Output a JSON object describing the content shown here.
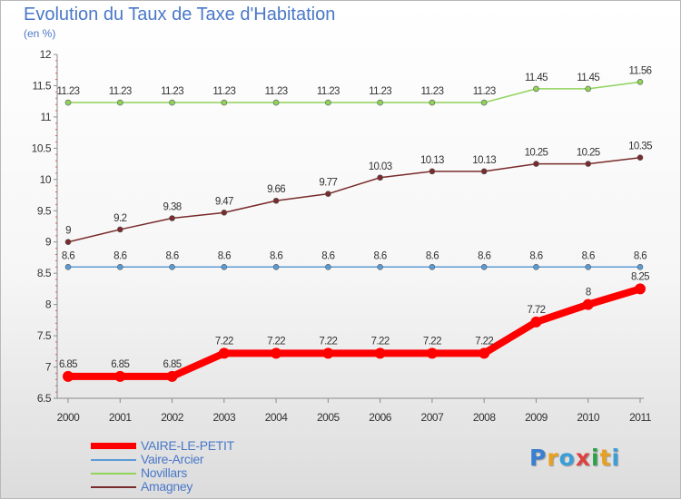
{
  "title": "Evolution du Taux de Taxe d'Habitation",
  "subtitle": "(en %)",
  "brand": {
    "text": "Proxiti",
    "letters": [
      {
        "ch": "P",
        "color": "#3a7fd0"
      },
      {
        "ch": "r",
        "color": "#e8a020"
      },
      {
        "ch": "o",
        "color": "#3a9ed8"
      },
      {
        "ch": "x",
        "color": "#e04040"
      },
      {
        "ch": "i",
        "color": "#2fa04a"
      },
      {
        "ch": "t",
        "color": "#e8a020"
      },
      {
        "ch": "i",
        "color": "#3a9ed8"
      }
    ]
  },
  "chart_data": {
    "type": "line",
    "title": "Evolution du Taux de Taxe d'Habitation",
    "subtitle": "(en %)",
    "xlabel": "",
    "ylabel": "",
    "x": [
      "2000",
      "2001",
      "2002",
      "2003",
      "2004",
      "2005",
      "2006",
      "2007",
      "2008",
      "2009",
      "2010",
      "2011"
    ],
    "ylim": [
      6.5,
      12
    ],
    "yticks": [
      6.5,
      7,
      7.5,
      8,
      8.5,
      9,
      9.5,
      10,
      10.5,
      11,
      11.5,
      12
    ],
    "ytick_labels": [
      "6.5",
      "7",
      "7.5",
      "8",
      "8.5",
      "9",
      "9.5",
      "10",
      "10.5",
      "11",
      "11.5",
      "12"
    ],
    "grid": false,
    "legend_position": "bottom-left",
    "series": [
      {
        "name": "VAIRE-LE-PETIT",
        "color": "#ff0000",
        "values": [
          6.85,
          6.85,
          6.85,
          7.22,
          7.22,
          7.22,
          7.22,
          7.22,
          7.22,
          7.72,
          8,
          8.25
        ],
        "labels": [
          "6.85",
          "6.85",
          "6.85",
          "7.22",
          "7.22",
          "7.22",
          "7.22",
          "7.22",
          "7.22",
          "7.72",
          "8",
          "8.25"
        ]
      },
      {
        "name": "Vaire-Arcier",
        "color": "#5b9bd5",
        "values": [
          8.6,
          8.6,
          8.6,
          8.6,
          8.6,
          8.6,
          8.6,
          8.6,
          8.6,
          8.6,
          8.6,
          8.6
        ],
        "labels": [
          "8.6",
          "8.6",
          "8.6",
          "8.6",
          "8.6",
          "8.6",
          "8.6",
          "8.6",
          "8.6",
          "8.6",
          "8.6",
          "8.6"
        ]
      },
      {
        "name": "Novillars",
        "color": "#8fd35a",
        "values": [
          11.23,
          11.23,
          11.23,
          11.23,
          11.23,
          11.23,
          11.23,
          11.23,
          11.23,
          11.45,
          11.45,
          11.56
        ],
        "labels": [
          "11.23",
          "11.23",
          "11.23",
          "11.23",
          "11.23",
          "11.23",
          "11.23",
          "11.23",
          "11.23",
          "11.45",
          "11.45",
          "11.56"
        ]
      },
      {
        "name": "Amagney",
        "color": "#7a2b2b",
        "values": [
          9,
          9.2,
          9.38,
          9.47,
          9.66,
          9.77,
          10.03,
          10.13,
          10.13,
          10.25,
          10.25,
          10.35
        ],
        "labels": [
          "9",
          "9.2",
          "9.38",
          "9.47",
          "9.66",
          "9.77",
          "10.03",
          "10.13",
          "10.13",
          "10.25",
          "10.25",
          "10.35"
        ]
      }
    ]
  }
}
